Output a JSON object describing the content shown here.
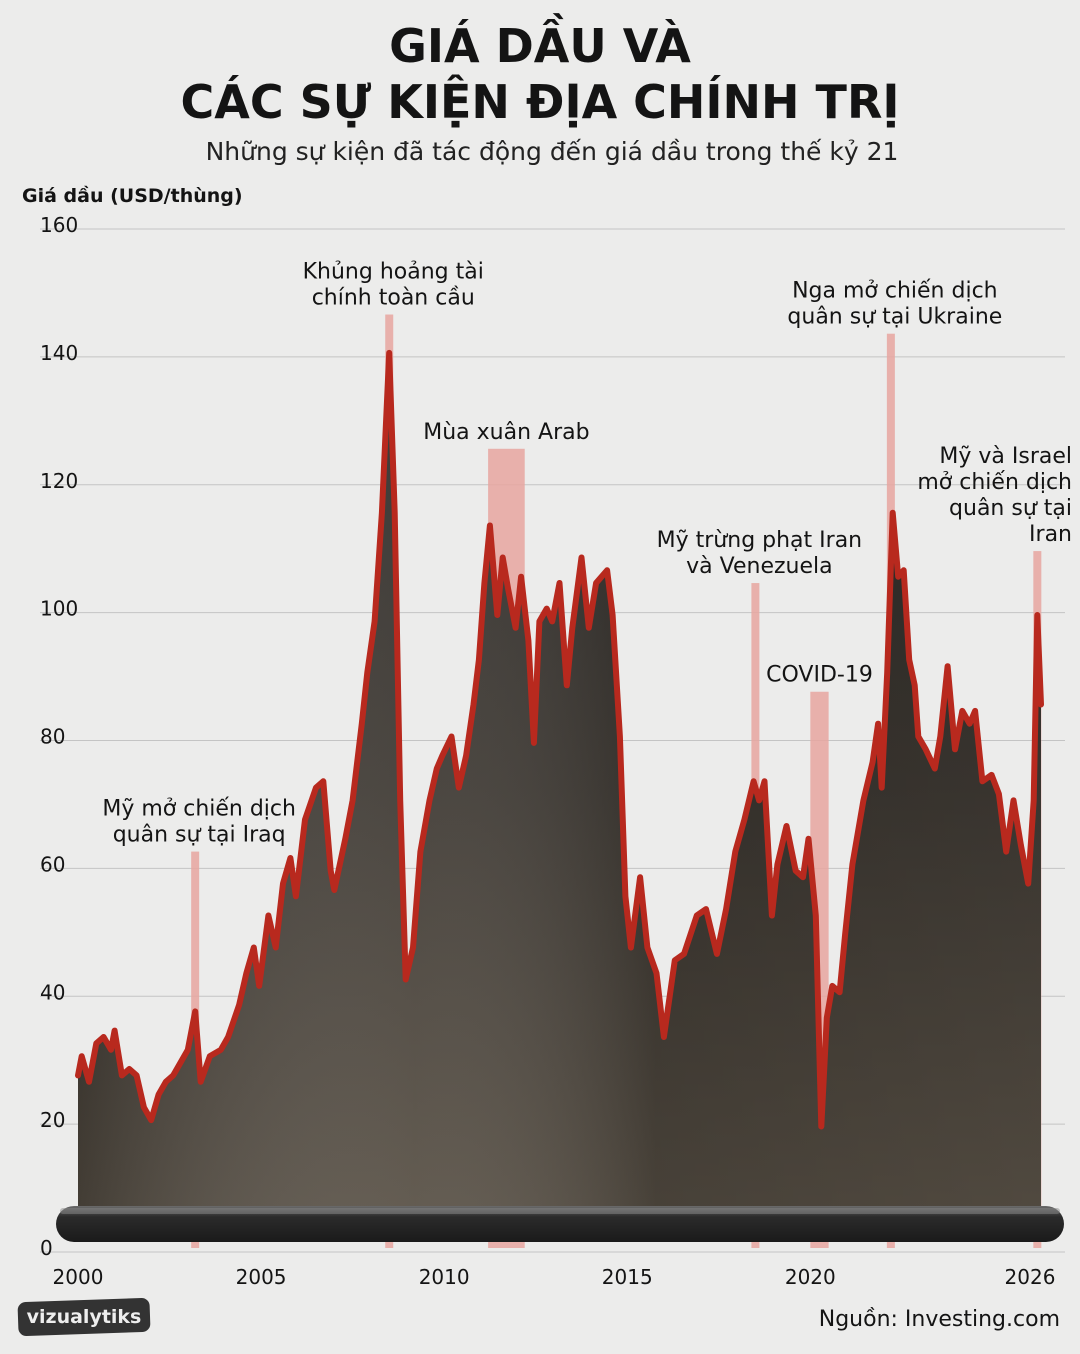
{
  "chart_data": {
    "type": "line",
    "title_lines": [
      "GIÁ DẦU VÀ",
      "CÁC SỰ KIỆN ĐỊA CHÍNH TRỊ"
    ],
    "subtitle": "Những sự kiện đã tác động đến giá dầu trong thế kỷ 21",
    "y_label": "Giá dầu (USD/thùng)",
    "source": "Nguồn: Investing.com",
    "brand": "vizualytiks",
    "color": "#b8291e",
    "grid": true,
    "xlim": [
      2000,
      2026.3
    ],
    "xticks": [
      2000,
      2005,
      2010,
      2015,
      2020,
      2026
    ],
    "ylim": [
      0,
      160
    ],
    "yticks": [
      0,
      20,
      40,
      60,
      80,
      100,
      120,
      140,
      160
    ],
    "x": [
      2000.0,
      2000.1,
      2000.3,
      2000.5,
      2000.7,
      2000.9,
      2001.0,
      2001.2,
      2001.4,
      2001.6,
      2001.8,
      2002.0,
      2002.2,
      2002.4,
      2002.6,
      2002.8,
      2003.0,
      2003.2,
      2003.35,
      2003.6,
      2003.9,
      2004.1,
      2004.4,
      2004.6,
      2004.8,
      2004.95,
      2005.2,
      2005.4,
      2005.6,
      2005.8,
      2005.95,
      2006.2,
      2006.5,
      2006.7,
      2006.9,
      2007.0,
      2007.3,
      2007.5,
      2007.75,
      2007.9,
      2008.1,
      2008.3,
      2008.5,
      2008.65,
      2008.8,
      2008.95,
      2009.15,
      2009.35,
      2009.6,
      2009.8,
      2009.95,
      2010.2,
      2010.4,
      2010.6,
      2010.8,
      2010.95,
      2011.1,
      2011.25,
      2011.45,
      2011.6,
      2011.75,
      2011.95,
      2012.1,
      2012.3,
      2012.45,
      2012.6,
      2012.8,
      2012.95,
      2013.15,
      2013.35,
      2013.5,
      2013.75,
      2013.95,
      2014.15,
      2014.45,
      2014.6,
      2014.8,
      2014.95,
      2015.1,
      2015.35,
      2015.55,
      2015.8,
      2016.0,
      2016.3,
      2016.55,
      2016.9,
      2017.15,
      2017.45,
      2017.7,
      2017.95,
      2018.2,
      2018.45,
      2018.6,
      2018.75,
      2018.95,
      2019.1,
      2019.35,
      2019.6,
      2019.8,
      2019.95,
      2020.15,
      2020.3,
      2020.45,
      2020.6,
      2020.8,
      2020.95,
      2021.15,
      2021.45,
      2021.7,
      2021.85,
      2021.95,
      2022.1,
      2022.25,
      2022.4,
      2022.55,
      2022.7,
      2022.85,
      2022.95,
      2023.15,
      2023.4,
      2023.55,
      2023.75,
      2023.95,
      2024.15,
      2024.35,
      2024.5,
      2024.7,
      2024.95,
      2025.15,
      2025.35,
      2025.55,
      2025.75,
      2025.95,
      2026.1,
      2026.2,
      2026.3
    ],
    "values": [
      27,
      30,
      26,
      32,
      33,
      31,
      34,
      27,
      28,
      27,
      22,
      20,
      24,
      26,
      27,
      29,
      31,
      37,
      26,
      30,
      31,
      33,
      38,
      43,
      47,
      41,
      52,
      47,
      57,
      61,
      55,
      67,
      72,
      73,
      59,
      56,
      64,
      70,
      82,
      90,
      98,
      115,
      140,
      115,
      70,
      42,
      47,
      62,
      70,
      75,
      77,
      80,
      72,
      77,
      85,
      92,
      104,
      113,
      99,
      108,
      103,
      97,
      105,
      95,
      79,
      98,
      100,
      98,
      104,
      88,
      97,
      108,
      97,
      104,
      106,
      99,
      80,
      55,
      47,
      58,
      47,
      43,
      33,
      45,
      46,
      52,
      53,
      46,
      53,
      62,
      67,
      73,
      70,
      73,
      52,
      60,
      66,
      59,
      58,
      64,
      52,
      19,
      36,
      41,
      40,
      49,
      60,
      70,
      76,
      82,
      72,
      90,
      115,
      105,
      106,
      92,
      88,
      80,
      78,
      75,
      80,
      91,
      78,
      84,
      82,
      84,
      73,
      74,
      71,
      62,
      70,
      63,
      57,
      70,
      99,
      85
    ],
    "annotations": [
      {
        "text": [
          "Mỹ mở chiến dịch",
          "quân sự tại Iraq"
        ],
        "x": 2003.2,
        "y": 62
      },
      {
        "text": [
          "Khủng hoảng tài",
          "chính toàn cầu"
        ],
        "x": 2008.5,
        "y": 146
      },
      {
        "text": [
          "Mùa xuân Arab"
        ],
        "x": 2011.2,
        "x_end": 2012.2,
        "y": 125
      },
      {
        "text": [
          "Mỹ trừng phạt Iran",
          "và Venezuela"
        ],
        "x": 2018.5,
        "y": 104
      },
      {
        "text": [
          "COVID-19"
        ],
        "x": 2020.0,
        "x_end": 2020.5,
        "y": 87
      },
      {
        "text": [
          "Nga mở chiến dịch",
          "quân sự tại Ukraine"
        ],
        "x": 2022.2,
        "y": 143
      },
      {
        "text": [
          "Mỹ và Israel",
          "mở chiến dịch",
          "quân sự tại",
          "Iran"
        ],
        "x": 2026.2,
        "y": 109
      }
    ]
  }
}
